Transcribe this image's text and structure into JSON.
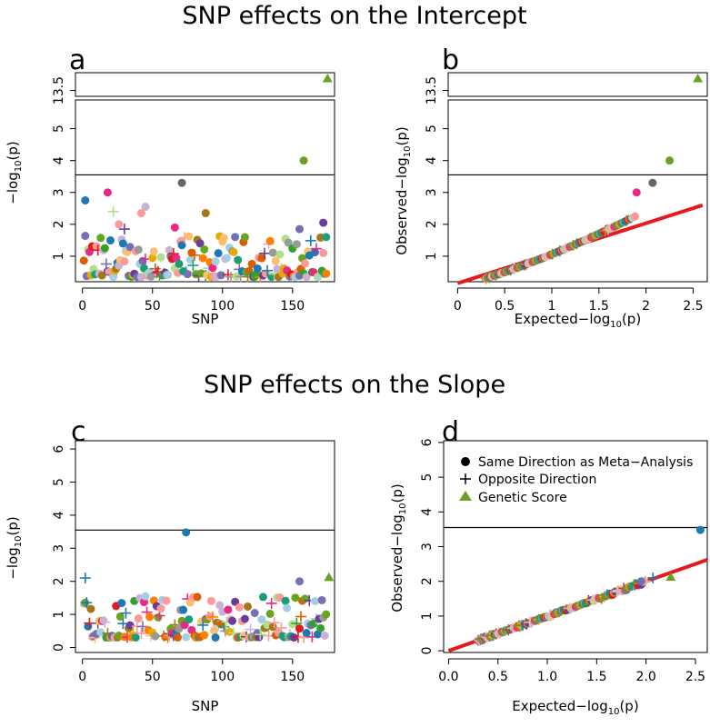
{
  "titles": {
    "top": "SNP effects on the Intercept",
    "bottom": "SNP effects on the Slope"
  },
  "legend": {
    "same": "Same Direction as Meta−Analysis",
    "opposite": "Opposite Direction",
    "score": "Genetic Score"
  },
  "colors": {
    "threshold": "#000000",
    "qq_line": "#e41a1c",
    "score": "#6aa023",
    "palette": [
      "#1f78b4",
      "#33a02c",
      "#e31a1c",
      "#ff7f00",
      "#6a3d9a",
      "#a6cee3",
      "#b2df8a",
      "#fb9a99",
      "#fdbf6f",
      "#cab2d6",
      "#e7298a",
      "#d95f02",
      "#7570b3",
      "#66a61e",
      "#e6ab02",
      "#a6761d",
      "#1b9e77",
      "#999999"
    ]
  },
  "chart_data": [
    {
      "panel": "a",
      "type": "scatter",
      "xlabel": "SNP",
      "ylabel": "−log10(p)",
      "x_ticks": [
        "0",
        "50",
        "100",
        "150"
      ],
      "y_ticks_lower": [
        "1",
        "2",
        "3",
        "4",
        "5"
      ],
      "y_ticks_upper": [
        "13.5"
      ],
      "xlim": [
        -5,
        180
      ],
      "ylim_lower": [
        0.2,
        5.9
      ],
      "ylim_upper": [
        13.4,
        13.8
      ],
      "threshold": 3.55,
      "snp_count": 174,
      "highlight_points": [
        {
          "x": 2,
          "y": 2.75,
          "shape": "circle",
          "color": "#1f78b4"
        },
        {
          "x": 18,
          "y": 3.0,
          "shape": "circle",
          "color": "#e7298a"
        },
        {
          "x": 71,
          "y": 3.3,
          "shape": "circle",
          "color": "#666666"
        },
        {
          "x": 45,
          "y": 2.55,
          "shape": "circle",
          "color": "#cab2d6"
        },
        {
          "x": 42,
          "y": 2.35,
          "shape": "circle",
          "color": "#fb9a99"
        },
        {
          "x": 88,
          "y": 2.35,
          "shape": "circle",
          "color": "#a6761d"
        },
        {
          "x": 22,
          "y": 2.4,
          "shape": "plus",
          "color": "#b2df8a"
        },
        {
          "x": 26,
          "y": 2.0,
          "shape": "circle",
          "color": "#fb9a99"
        },
        {
          "x": 30,
          "y": 1.85,
          "shape": "plus",
          "color": "#6a3d9a"
        },
        {
          "x": 66,
          "y": 1.9,
          "shape": "circle",
          "color": "#e7298a"
        },
        {
          "x": 172,
          "y": 2.05,
          "shape": "circle",
          "color": "#6a3d9a"
        },
        {
          "x": 155,
          "y": 1.85,
          "shape": "circle",
          "color": "#7570b3"
        },
        {
          "x": 174,
          "y": 1.6,
          "shape": "circle",
          "color": "#1b9e77"
        },
        {
          "x": 158,
          "y": 4.0,
          "shape": "circle",
          "color": "#6aa023"
        },
        {
          "x": 175,
          "y": 13.7,
          "shape": "triangle",
          "color": "#6aa023"
        }
      ]
    },
    {
      "panel": "b",
      "type": "scatter",
      "xlabel": "Expected−log10(p)",
      "ylabel": "Observed−log10(p)",
      "x_ticks": [
        "0",
        "0.5",
        "1",
        "1.5",
        "2",
        "2.5"
      ],
      "y_ticks_lower": [
        "1",
        "2",
        "3",
        "4",
        "5"
      ],
      "y_ticks_upper": [
        "13.5"
      ],
      "xlim": [
        -0.1,
        2.65
      ],
      "ylim_lower": [
        0.2,
        5.9
      ],
      "ylim_upper": [
        13.4,
        13.8
      ],
      "threshold": 3.55,
      "qq_line": {
        "from": [
          0,
          0
        ],
        "to": [
          2.6,
          2.6
        ]
      },
      "expected_range": [
        0.3,
        2.25
      ],
      "highlight_points": [
        {
          "x": 1.9,
          "y": 3.0,
          "shape": "circle",
          "color": "#e7298a"
        },
        {
          "x": 2.07,
          "y": 3.3,
          "shape": "circle",
          "color": "#666666"
        },
        {
          "x": 2.25,
          "y": 4.0,
          "shape": "circle",
          "color": "#6aa023"
        },
        {
          "x": 2.55,
          "y": 13.7,
          "shape": "triangle",
          "color": "#6aa023"
        }
      ]
    },
    {
      "panel": "c",
      "type": "scatter",
      "xlabel": "SNP",
      "ylabel": "−log10(p)",
      "x_ticks": [
        "0",
        "50",
        "100",
        "150"
      ],
      "y_ticks": [
        "0",
        "1",
        "2",
        "3",
        "4",
        "5",
        "6"
      ],
      "xlim": [
        -5,
        180
      ],
      "ylim": [
        -0.15,
        6.25
      ],
      "threshold": 3.55,
      "snp_count": 174,
      "highlight_points": [
        {
          "x": 74,
          "y": 3.48,
          "shape": "circle",
          "color": "#1f78b4"
        },
        {
          "x": 2,
          "y": 2.1,
          "shape": "plus",
          "color": "#1f78b4"
        },
        {
          "x": 155,
          "y": 2.0,
          "shape": "circle",
          "color": "#7570b3"
        },
        {
          "x": 176,
          "y": 2.12,
          "shape": "triangle",
          "color": "#6aa023"
        }
      ]
    },
    {
      "panel": "d",
      "type": "scatter",
      "xlabel": "Expected−log10(p)",
      "ylabel": "Observed−log10(p)",
      "x_ticks": [
        "0.0",
        "0.5",
        "1.0",
        "1.5",
        "2.0",
        "2.5"
      ],
      "y_ticks": [
        "0",
        "1",
        "2",
        "3",
        "4",
        "5",
        "6"
      ],
      "xlim": [
        -0.05,
        2.62
      ],
      "ylim": [
        -0.05,
        6.05
      ],
      "threshold": 3.55,
      "qq_line": {
        "from": [
          0,
          0
        ],
        "to": [
          2.62,
          2.62
        ]
      },
      "expected_range": [
        0.3,
        2.1
      ],
      "highlight_points": [
        {
          "x": 2.55,
          "y": 3.48,
          "shape": "circle",
          "color": "#1f78b4"
        },
        {
          "x": 2.25,
          "y": 2.12,
          "shape": "triangle",
          "color": "#6aa023"
        },
        {
          "x": 2.07,
          "y": 2.1,
          "shape": "plus",
          "color": "#1f78b4"
        },
        {
          "x": 1.95,
          "y": 2.0,
          "shape": "circle",
          "color": "#7570b3"
        }
      ]
    }
  ]
}
